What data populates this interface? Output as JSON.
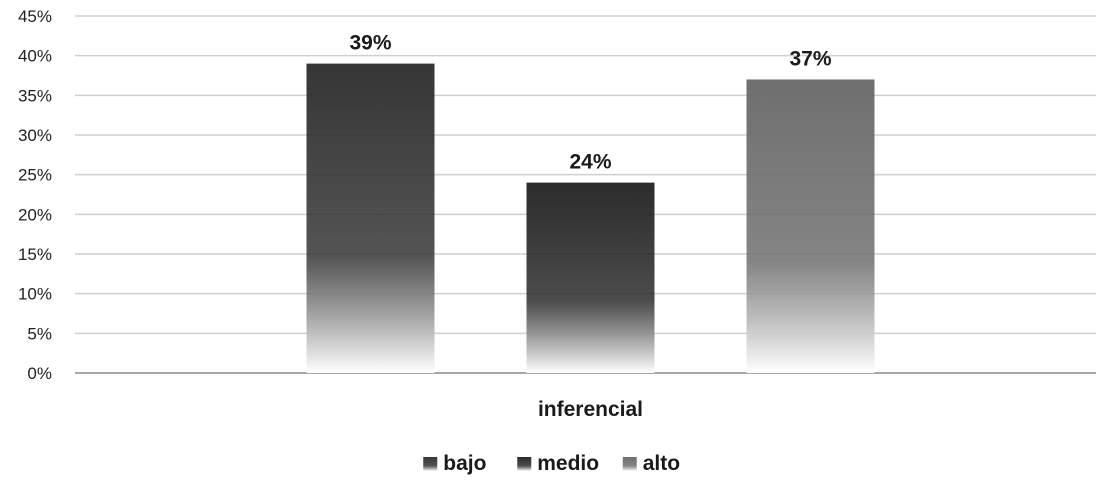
{
  "chart_data": {
    "type": "bar",
    "categories": [
      "inferencial"
    ],
    "series": [
      {
        "name": "bajo",
        "values": [
          39
        ],
        "labels": [
          "39%"
        ],
        "color_top": "#363636",
        "color_bottom": "#ffffff"
      },
      {
        "name": "medio",
        "values": [
          24
        ],
        "labels": [
          "24%"
        ],
        "color_top": "#2c2c2c",
        "color_bottom": "#ffffff"
      },
      {
        "name": "alto",
        "values": [
          37
        ],
        "labels": [
          "37%"
        ],
        "color_top": "#6f6f6f",
        "color_bottom": "#ffffff"
      }
    ],
    "yticks": [
      "0%",
      "5%",
      "10%",
      "15%",
      "20%",
      "25%",
      "30%",
      "35%",
      "40%",
      "45%"
    ],
    "ylim": [
      0,
      45
    ],
    "grid": true,
    "legend_position": "bottom"
  }
}
